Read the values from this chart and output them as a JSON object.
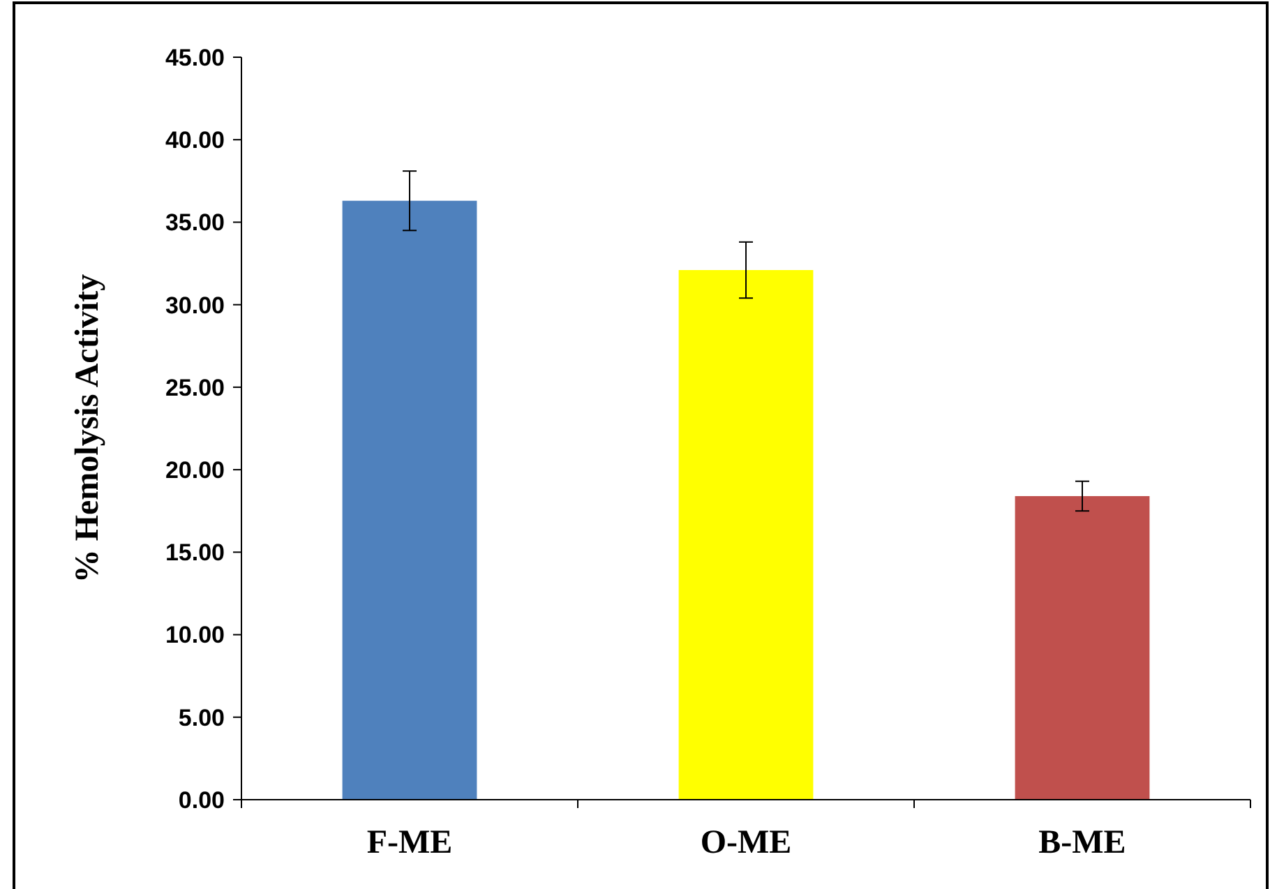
{
  "chart_data": {
    "type": "bar",
    "ylabel": "% Hemolysis Activity",
    "categories": [
      "F-ME",
      "O-ME",
      "B-ME"
    ],
    "values": [
      36.3,
      32.1,
      18.4
    ],
    "colors": [
      "#4f81bd",
      "#ffff00",
      "#c0504d"
    ],
    "errors": [
      1.8,
      1.7,
      0.9
    ],
    "ylim": [
      0,
      45
    ],
    "yticks": [
      {
        "value": 0,
        "label": "0.00"
      },
      {
        "value": 5,
        "label": "5.00"
      },
      {
        "value": 10,
        "label": "10.00"
      },
      {
        "value": 15,
        "label": "15.00"
      },
      {
        "value": 20,
        "label": "20.00"
      },
      {
        "value": 25,
        "label": "25.00"
      },
      {
        "value": 30,
        "label": "30.00"
      },
      {
        "value": 35,
        "label": "35.00"
      },
      {
        "value": 40,
        "label": "40.00"
      },
      {
        "value": 45,
        "label": "45.00"
      }
    ],
    "grid": false
  }
}
